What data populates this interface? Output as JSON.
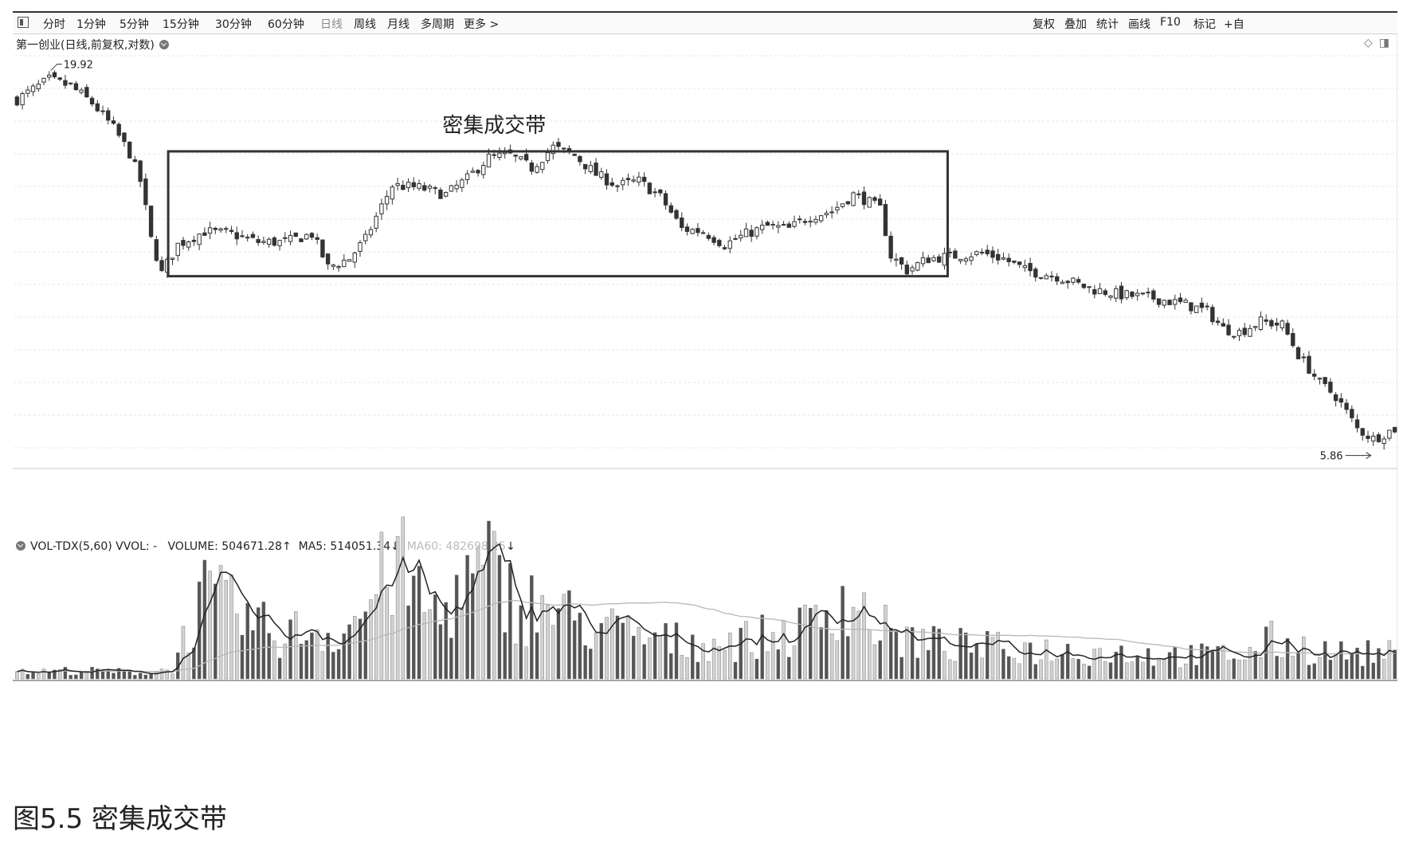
{
  "toolbar": {
    "left": [
      "分时",
      "1分钟",
      "5分钟",
      "15分钟",
      "30分钟",
      "60分钟",
      "日线",
      "周线",
      "月线",
      "多周期",
      "更多 >"
    ],
    "active": "日线",
    "right": [
      "复权",
      "叠加",
      "统计",
      "画线",
      "F10",
      "标记",
      "+自"
    ]
  },
  "main_chart": {
    "title": "第一创业(日线,前复权,对数)",
    "annotation": "密集成交带",
    "high_label": "19.92",
    "low_label": "5.86",
    "corner_icons": [
      "diamond-icon",
      "panel-icon"
    ]
  },
  "volume_chart": {
    "title": "VOL-TDX(5,60)",
    "vvol": "VVOL: -",
    "volume": "VOLUME: 504671.28",
    "ma5": "MA5: 514051.34",
    "ma60": "MA60: 482698.25"
  },
  "caption": "图5.5 密集成交带",
  "chart_data": {
    "type": "candlestick",
    "scale": "log",
    "ylim": [
      5.6,
      21.5
    ],
    "price_path": [
      [
        0,
        18.2
      ],
      [
        6,
        19.4
      ],
      [
        10,
        19.0
      ],
      [
        14,
        18.0
      ],
      [
        18,
        16.6
      ],
      [
        21,
        15.3
      ],
      [
        23,
        14.0
      ],
      [
        25,
        11.6
      ],
      [
        27,
        10.4
      ],
      [
        30,
        11.4
      ],
      [
        35,
        11.9
      ],
      [
        40,
        11.8
      ],
      [
        45,
        11.5
      ],
      [
        50,
        11.5
      ],
      [
        55,
        11.8
      ],
      [
        58,
        10.6
      ],
      [
        62,
        10.9
      ],
      [
        65,
        11.6
      ],
      [
        68,
        12.9
      ],
      [
        70,
        13.8
      ],
      [
        75,
        13.7
      ],
      [
        80,
        13.4
      ],
      [
        84,
        14.1
      ],
      [
        88,
        15.1
      ],
      [
        92,
        15.2
      ],
      [
        96,
        14.6
      ],
      [
        100,
        15.6
      ],
      [
        104,
        15.2
      ],
      [
        108,
        14.3
      ],
      [
        112,
        13.8
      ],
      [
        116,
        14.0
      ],
      [
        120,
        13.3
      ],
      [
        124,
        12.0
      ],
      [
        128,
        11.9
      ],
      [
        132,
        11.4
      ],
      [
        136,
        11.8
      ],
      [
        140,
        12.1
      ],
      [
        144,
        12.0
      ],
      [
        148,
        12.5
      ],
      [
        152,
        12.7
      ],
      [
        156,
        13.4
      ],
      [
        158,
        13.2
      ],
      [
        161,
        12.8
      ],
      [
        163,
        11.0
      ],
      [
        166,
        10.5
      ],
      [
        170,
        10.9
      ],
      [
        175,
        11.0
      ],
      [
        180,
        11.1
      ],
      [
        184,
        10.9
      ],
      [
        188,
        10.5
      ],
      [
        194,
        10.3
      ],
      [
        200,
        9.9
      ],
      [
        206,
        9.7
      ],
      [
        212,
        9.6
      ],
      [
        218,
        9.4
      ],
      [
        222,
        9.2
      ],
      [
        225,
        8.7
      ],
      [
        228,
        8.6
      ],
      [
        232,
        8.9
      ],
      [
        236,
        8.8
      ],
      [
        239,
        8.0
      ],
      [
        243,
        7.3
      ],
      [
        246,
        7.0
      ],
      [
        250,
        6.3
      ],
      [
        253,
        6.1
      ],
      [
        257,
        6.3
      ]
    ],
    "dense_zone": {
      "label": "密集成交带",
      "price_range": [
        10.3,
        15.4
      ]
    },
    "volume_levels": [
      [
        0,
        0.03
      ],
      [
        10,
        0.04
      ],
      [
        25,
        0.03
      ],
      [
        29,
        0.05
      ],
      [
        32,
        0.25
      ],
      [
        35,
        0.38
      ],
      [
        38,
        0.35
      ],
      [
        42,
        0.3
      ],
      [
        46,
        0.24
      ],
      [
        50,
        0.2
      ],
      [
        54,
        0.25
      ],
      [
        58,
        0.22
      ],
      [
        62,
        0.25
      ],
      [
        65,
        0.34
      ],
      [
        68,
        0.46
      ],
      [
        70,
        0.55
      ],
      [
        73,
        0.48
      ],
      [
        76,
        0.35
      ],
      [
        79,
        0.3
      ],
      [
        82,
        0.42
      ],
      [
        85,
        0.45
      ],
      [
        88,
        0.52
      ],
      [
        90,
        0.46
      ],
      [
        92,
        0.4
      ],
      [
        94,
        0.33
      ],
      [
        97,
        0.36
      ],
      [
        100,
        0.32
      ],
      [
        104,
        0.28
      ],
      [
        110,
        0.24
      ],
      [
        116,
        0.2
      ],
      [
        122,
        0.18
      ],
      [
        128,
        0.17
      ],
      [
        134,
        0.18
      ],
      [
        140,
        0.2
      ],
      [
        146,
        0.23
      ],
      [
        150,
        0.3
      ],
      [
        153,
        0.4
      ],
      [
        156,
        0.36
      ],
      [
        160,
        0.26
      ],
      [
        164,
        0.2
      ],
      [
        170,
        0.17
      ],
      [
        180,
        0.15
      ],
      [
        190,
        0.14
      ],
      [
        200,
        0.13
      ],
      [
        210,
        0.12
      ],
      [
        220,
        0.11
      ],
      [
        230,
        0.12
      ],
      [
        234,
        0.18
      ],
      [
        238,
        0.16
      ],
      [
        242,
        0.14
      ],
      [
        248,
        0.12
      ],
      [
        257,
        0.12
      ]
    ],
    "volume_ylim": [
      0,
      0.9
    ]
  }
}
